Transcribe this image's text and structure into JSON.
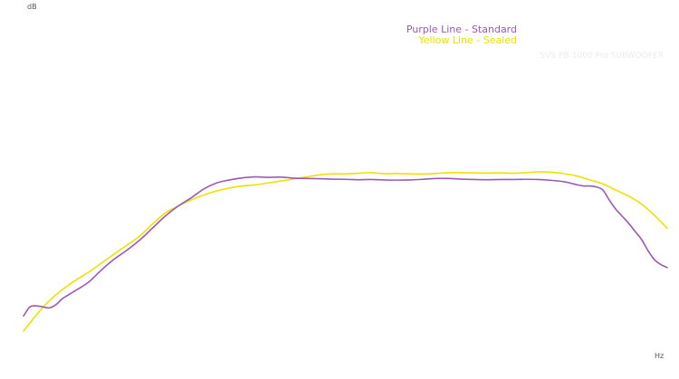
{
  "chart_data": {
    "type": "line",
    "title": "SVS PB-1000 Pro SUBWOOFER",
    "xlabel": "Hz",
    "ylabel": "dB",
    "grid": false,
    "legend_position": "top-right",
    "legend": [
      {
        "text": "Purple Line - Standard",
        "color": "#9b59b6"
      },
      {
        "text": "Yellow Line - Sealed",
        "color": "#f0e000"
      }
    ],
    "title_color": "#ebebeb",
    "axis_label_color": "#555555",
    "note": "",
    "series": [
      {
        "color": "#9b59b6",
        "x": [
          0,
          1,
          2,
          3,
          4,
          5,
          6,
          7,
          8,
          10,
          12,
          14,
          16,
          18,
          20,
          22,
          24,
          26,
          28,
          30,
          32,
          34,
          36,
          38,
          40,
          42,
          44,
          46,
          48,
          50,
          52,
          54,
          56,
          58,
          60,
          62,
          64,
          66,
          68,
          70,
          72,
          74,
          76,
          78,
          80,
          82,
          84,
          85,
          86,
          87,
          88,
          89,
          90,
          91,
          92,
          93,
          94,
          95,
          96,
          97,
          98,
          99,
          100
        ],
        "y": [
          7.5,
          12,
          12.5,
          12,
          11.5,
          13,
          16,
          18,
          20,
          24,
          30,
          35.5,
          40,
          45,
          51,
          57,
          62,
          66,
          70.5,
          73.5,
          75,
          76,
          76.5,
          76.3,
          76.4,
          75.9,
          75.7,
          75.6,
          75.4,
          75.3,
          75.1,
          75.2,
          75.0,
          74.9,
          75.0,
          75.3,
          75.7,
          75.7,
          75.4,
          75.2,
          75.1,
          75.2,
          75.2,
          75.3,
          75.2,
          74.8,
          74.1,
          73.4,
          72.6,
          72.0,
          72.0,
          71.5,
          70.0,
          65.0,
          60.5,
          57.0,
          53.5,
          49.5,
          45.5,
          40.0,
          35.5,
          33.0,
          31.5
        ]
      },
      {
        "color": "#f0e000",
        "x": [
          0,
          2,
          4,
          6,
          8,
          10,
          12,
          14,
          16,
          18,
          20,
          22,
          24,
          26,
          28,
          30,
          32,
          34,
          36,
          38,
          40,
          42,
          44,
          46,
          48,
          50,
          52,
          54,
          56,
          58,
          60,
          62,
          64,
          66,
          68,
          70,
          72,
          74,
          76,
          78,
          80,
          82,
          84,
          86,
          88,
          90,
          92,
          94,
          96,
          98,
          100
        ],
        "y": [
          0,
          8,
          15,
          20.5,
          25,
          29,
          33.5,
          38,
          42.5,
          47,
          53,
          58.5,
          62,
          65,
          67.5,
          69.5,
          71,
          72,
          72.5,
          73.5,
          74.5,
          75.5,
          76.5,
          77.5,
          78,
          78,
          78.3,
          78.6,
          78.1,
          78.2,
          78.0,
          77.9,
          78.2,
          78.6,
          78.6,
          78.5,
          78.4,
          78.5,
          78.3,
          78.6,
          79.0,
          78.8,
          78.1,
          76.9,
          75.0,
          73.0,
          70.0,
          67.0,
          63.0,
          57.5,
          51.0
        ]
      }
    ]
  }
}
